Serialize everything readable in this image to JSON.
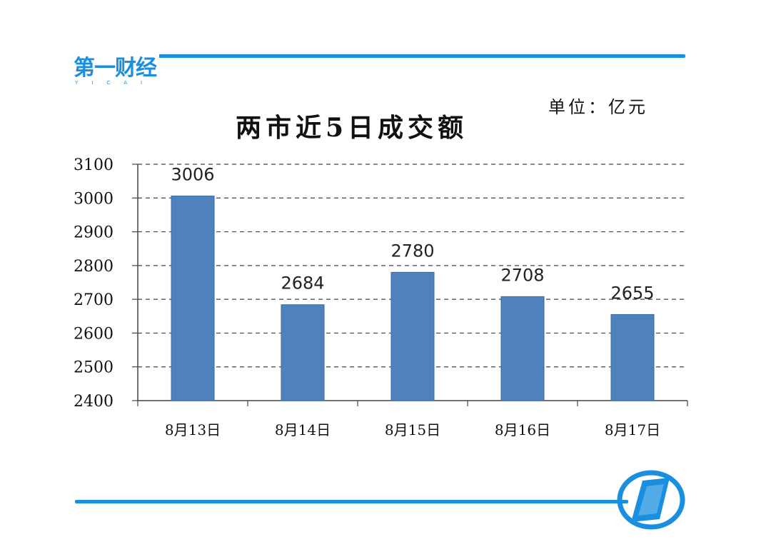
{
  "brand": {
    "logo_text": "第一财经",
    "logo_sub": "YICAI",
    "accent": "#1a8fe0",
    "emblem_icon": "yicai-emblem-icon"
  },
  "unit_label": "单位：亿元",
  "chart_data": {
    "type": "bar",
    "title": "两市近5日成交额",
    "categories": [
      "8月13日",
      "8月14日",
      "8月15日",
      "8月16日",
      "8月17日"
    ],
    "values": [
      3006,
      2684,
      2780,
      2708,
      2655
    ],
    "value_labels": [
      "3006",
      "2684",
      "2780",
      "2708",
      "2655"
    ],
    "ylim": [
      2400,
      3100
    ],
    "yticks": [
      2400,
      2500,
      2600,
      2700,
      2800,
      2900,
      3000,
      3100
    ],
    "xlabel": "",
    "ylabel": "",
    "grid": true,
    "grid_style": "dashed",
    "legend": "none",
    "bar_color": "#4f81bd"
  }
}
